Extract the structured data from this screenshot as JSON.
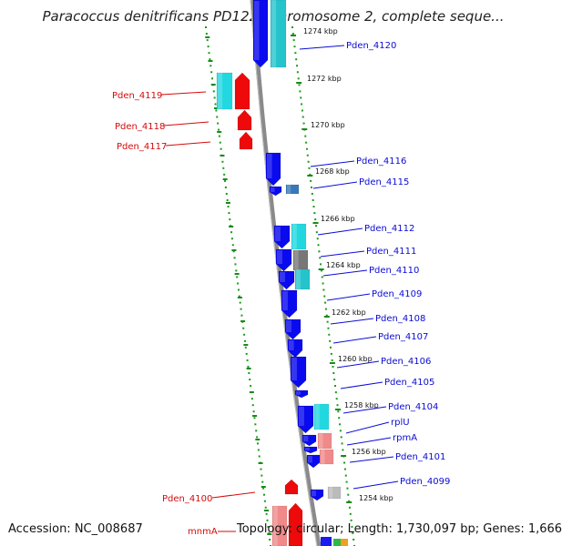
{
  "title": "Paracoccus denitrificans PD1222 chromosome 2, complete seque...",
  "footer": {
    "accession": "Accession: NC_008687",
    "summary": "Topology: circular; Length: 1,730,097 bp; Genes: 1,666"
  },
  "colors": {
    "forward_gene": "#0a0aee",
    "reverse_gene": "#ee0a0a",
    "forward_label": "#0b0bd6",
    "reverse_label": "#d40b0b",
    "backbone": "#888888",
    "scale_dots": "#1a9a1a",
    "cds_cyan": "#22d8e0",
    "rna_pink": "#f08a8a"
  },
  "scale_labels": [
    "1274 kbp",
    "1272 kbp",
    "1270 kbp",
    "1268 kbp",
    "1266 kbp",
    "1264 kbp",
    "1262 kbp",
    "1260 kbp",
    "1258 kbp",
    "1256 kbp",
    "1254 kbp"
  ],
  "right_labels": [
    "Pden_4120",
    "Pden_4116",
    "Pden_4115",
    "Pden_4112",
    "Pden_4111",
    "Pden_4110",
    "Pden_4109",
    "Pden_4108",
    "Pden_4107",
    "Pden_4106",
    "Pden_4105",
    "Pden_4104",
    "rplU",
    "rpmA",
    "Pden_4101",
    "Pden_4099"
  ],
  "left_labels": [
    "Pden_4119",
    "Pden_4118",
    "Pden_4117",
    "Pden_4100",
    "mnmA"
  ]
}
